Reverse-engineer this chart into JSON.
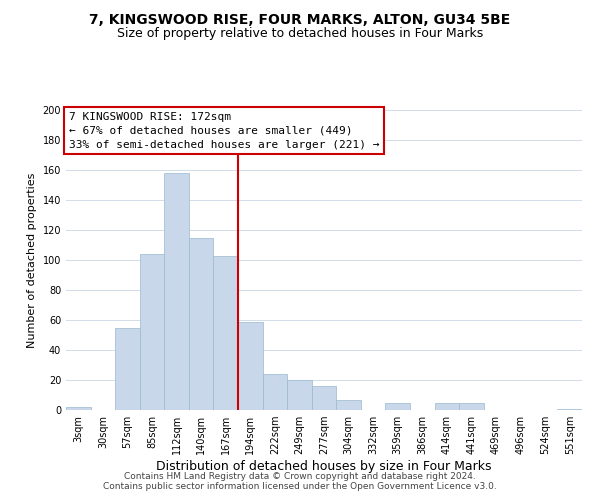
{
  "title": "7, KINGSWOOD RISE, FOUR MARKS, ALTON, GU34 5BE",
  "subtitle": "Size of property relative to detached houses in Four Marks",
  "xlabel": "Distribution of detached houses by size in Four Marks",
  "ylabel": "Number of detached properties",
  "bar_color": "#c8d8ea",
  "bar_edge_color": "#9ab8d0",
  "categories": [
    "3sqm",
    "30sqm",
    "57sqm",
    "85sqm",
    "112sqm",
    "140sqm",
    "167sqm",
    "194sqm",
    "222sqm",
    "249sqm",
    "277sqm",
    "304sqm",
    "332sqm",
    "359sqm",
    "386sqm",
    "414sqm",
    "441sqm",
    "469sqm",
    "496sqm",
    "524sqm",
    "551sqm"
  ],
  "values": [
    2,
    0,
    55,
    104,
    158,
    115,
    103,
    59,
    24,
    20,
    16,
    7,
    0,
    5,
    0,
    5,
    5,
    0,
    0,
    0,
    1
  ],
  "vline_x": 6.5,
  "vline_color": "#cc0000",
  "annotation_line1": "7 KINGSWOOD RISE: 172sqm",
  "annotation_line2": "← 67% of detached houses are smaller (449)",
  "annotation_line3": "33% of semi-detached houses are larger (221) →",
  "annotation_box_color": "#ffffff",
  "annotation_border_color": "#cc0000",
  "ylim": [
    0,
    200
  ],
  "yticks": [
    0,
    20,
    40,
    60,
    80,
    100,
    120,
    140,
    160,
    180,
    200
  ],
  "footer1": "Contains HM Land Registry data © Crown copyright and database right 2024.",
  "footer2": "Contains public sector information licensed under the Open Government Licence v3.0.",
  "background_color": "#ffffff",
  "grid_color": "#d0dce8",
  "title_fontsize": 10,
  "subtitle_fontsize": 9,
  "xlabel_fontsize": 9,
  "ylabel_fontsize": 8,
  "tick_fontsize": 7,
  "annotation_fontsize": 8,
  "footer_fontsize": 6.5
}
